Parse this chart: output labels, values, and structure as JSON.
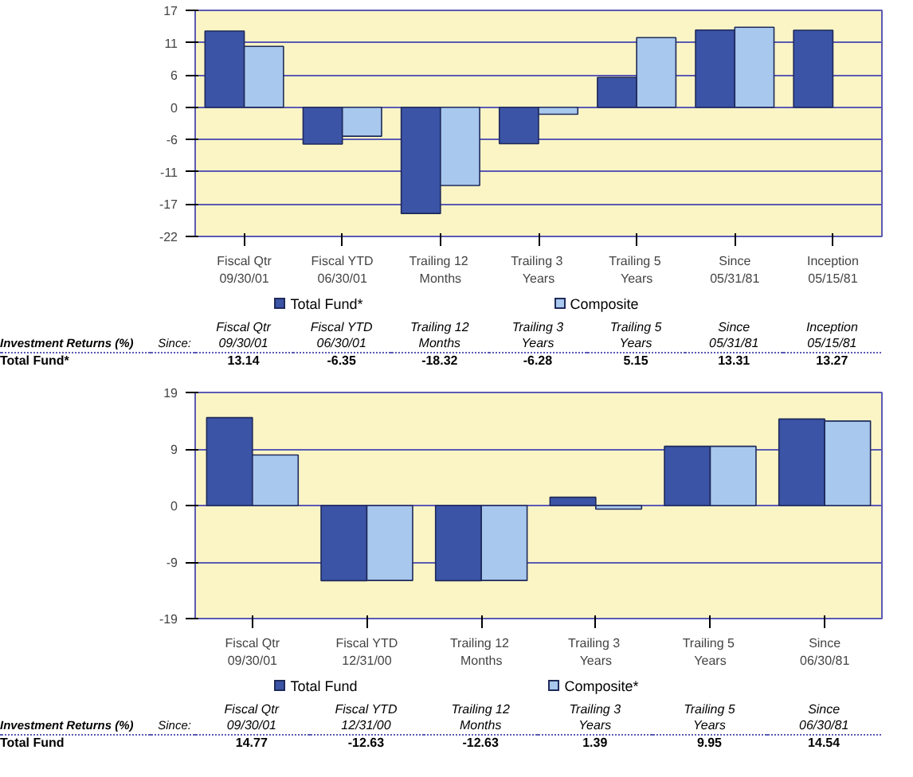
{
  "chart_data": [
    {
      "type": "bar",
      "categories": [
        "Fiscal Qtr\n09/30/01",
        "Fiscal YTD\n06/30/01",
        "Trailing  12\nMonths",
        "Trailing  3\nYears",
        "Trailing  5\nYears",
        "Since\n05/31/81",
        "Inception\n05/15/81"
      ],
      "series": [
        {
          "name": "Total Fund*",
          "color": "#3b54a6",
          "values": [
            13.14,
            -6.35,
            -18.32,
            -6.28,
            5.15,
            13.31,
            13.27
          ],
          "value_labels": [
            "13.14",
            "-6.35",
            "-18.32",
            "-6.28",
            "5.15",
            "13.31",
            "13.27"
          ]
        },
        {
          "name": "Composite",
          "color": "#a8c8ee",
          "values": [
            10.5,
            -5.0,
            -13.5,
            -1.2,
            12.0,
            13.8,
            null
          ]
        }
      ],
      "ylim": [
        -22.28,
        16.71
      ],
      "yticks": [
        {
          "value": -22.28,
          "label": "-22"
        },
        {
          "value": -16.71,
          "label": "-17"
        },
        {
          "value": -11.14,
          "label": "-11"
        },
        {
          "value": -5.57,
          "label": "-6"
        },
        0,
        {
          "value": 5.57,
          "label": "6"
        },
        {
          "value": 11.14,
          "label": "11"
        },
        {
          "value": 16.71,
          "label": "17"
        }
      ],
      "grid": "y",
      "legend": "bottom",
      "annotations": [
        "Investment Returns (%)",
        "Since:"
      ]
    },
    {
      "type": "bar",
      "categories": [
        "Fiscal Qtr\n09/30/01",
        "Fiscal YTD\n12/31/00",
        "Trailing  12\nMonths",
        "Trailing  3\nYears",
        "Trailing  5\nYears",
        "Since\n06/30/81"
      ],
      "series": [
        {
          "name": "Total Fund",
          "color": "#3b54a6",
          "values": [
            14.77,
            -12.63,
            -12.63,
            1.39,
            9.95,
            14.54
          ],
          "value_labels": [
            "14.77",
            "-12.63",
            "-12.63",
            "1.39",
            "9.95",
            "14.54"
          ]
        },
        {
          "name": "Composite*",
          "color": "#a8c8ee",
          "values": [
            8.5,
            -12.6,
            -12.6,
            -0.6,
            9.95,
            14.2
          ]
        }
      ],
      "ylim": [
        -19,
        19
      ],
      "yticks": [
        -19,
        {
          "value": -9.5,
          "label": "-9"
        },
        0,
        {
          "value": 9.5,
          "label": "9"
        },
        19
      ],
      "grid": "y",
      "legend": "bottom",
      "annotations": [
        "Investment Returns (%)",
        "Since:"
      ]
    }
  ]
}
